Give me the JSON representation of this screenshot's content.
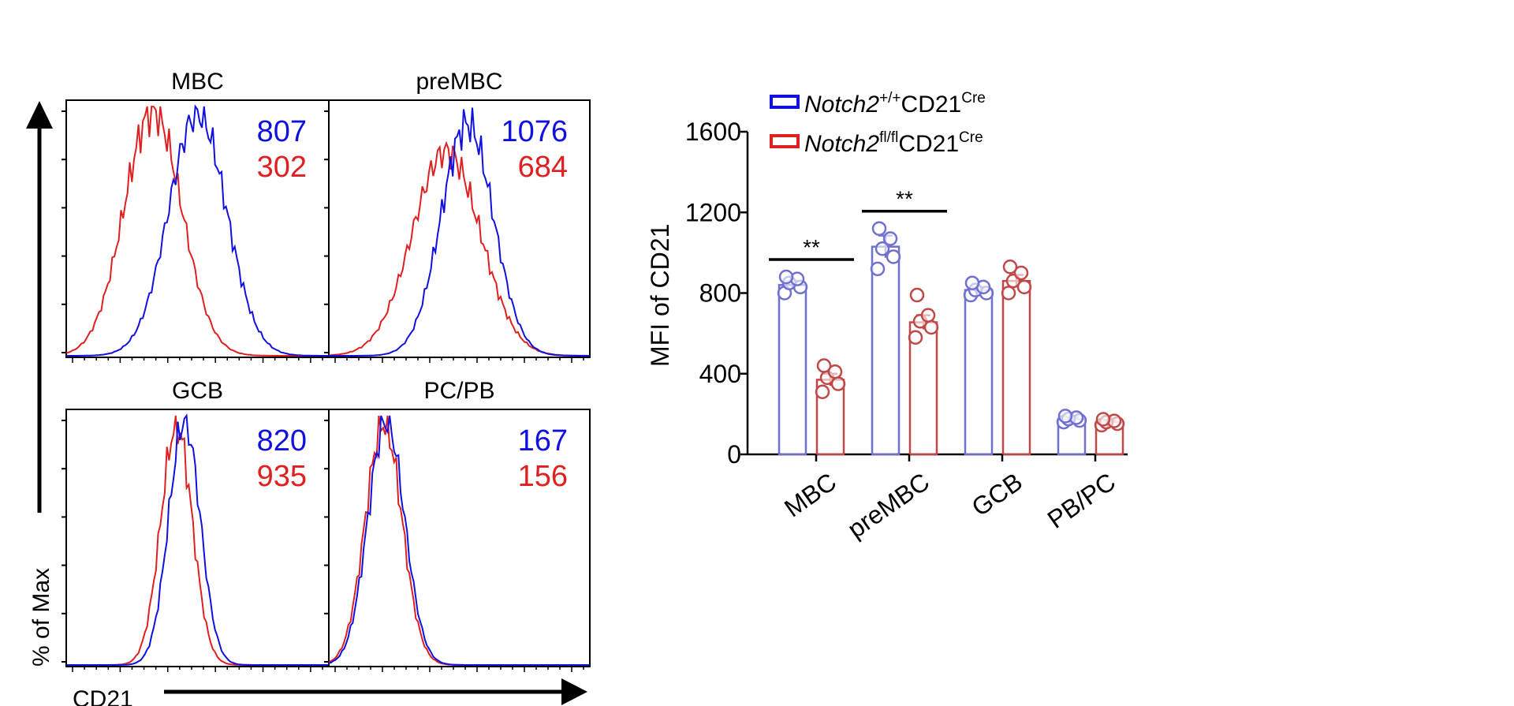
{
  "colors": {
    "wt": "#1010e0",
    "ko": "#e02020",
    "bar_wt": "#7070d0",
    "bar_ko": "#c04848",
    "axis": "#000000"
  },
  "histograms": {
    "y_axis_label": "% of Max",
    "x_axis_label": "CD21",
    "panels": [
      {
        "title": "MBC",
        "wt_value": "807",
        "ko_value": "302"
      },
      {
        "title": "preMBC",
        "wt_value": "1076",
        "ko_value": "684"
      },
      {
        "title": "GCB",
        "wt_value": "820",
        "ko_value": "935"
      },
      {
        "title": "PC/PB",
        "wt_value": "167",
        "ko_value": "156"
      }
    ]
  },
  "legend": {
    "wt": {
      "gene": "Notch2",
      "genotype": "+/+",
      "driver": "CD21",
      "driver_sup": "Cre"
    },
    "ko": {
      "gene": "Notch2",
      "genotype": "fl/fl",
      "driver": "CD21",
      "driver_sup": "Cre"
    }
  },
  "chart_data": {
    "type": "bar",
    "title": "",
    "xlabel": "",
    "ylabel": "MFI of CD21",
    "ylim": [
      0,
      1600
    ],
    "yticks": [
      "0",
      "400",
      "800",
      "1200",
      "1600"
    ],
    "categories": [
      "MBC",
      "preMBC",
      "GCB",
      "PB/PC"
    ],
    "series": [
      {
        "name": "Notch2+/+CD21Cre",
        "key": "wt",
        "values": [
          840,
          1030,
          815,
          175
        ],
        "sem": [
          20,
          55,
          15,
          10
        ],
        "points": [
          [
            800,
            830,
            850,
            870,
            880
          ],
          [
            920,
            980,
            1020,
            1070,
            1120
          ],
          [
            790,
            800,
            815,
            830,
            850
          ],
          [
            160,
            168,
            175,
            182,
            190
          ]
        ]
      },
      {
        "name": "Notch2fl/flCD21Cre",
        "key": "ko",
        "values": [
          370,
          655,
          860,
          160
        ],
        "sem": [
          30,
          35,
          30,
          8
        ],
        "points": [
          [
            310,
            350,
            380,
            410,
            440
          ],
          [
            580,
            630,
            660,
            690,
            790
          ],
          [
            800,
            830,
            860,
            900,
            930
          ],
          [
            145,
            152,
            160,
            166,
            174
          ]
        ]
      }
    ],
    "significance": [
      {
        "category": "MBC",
        "label": "**"
      },
      {
        "category": "preMBC",
        "label": "**"
      }
    ]
  }
}
